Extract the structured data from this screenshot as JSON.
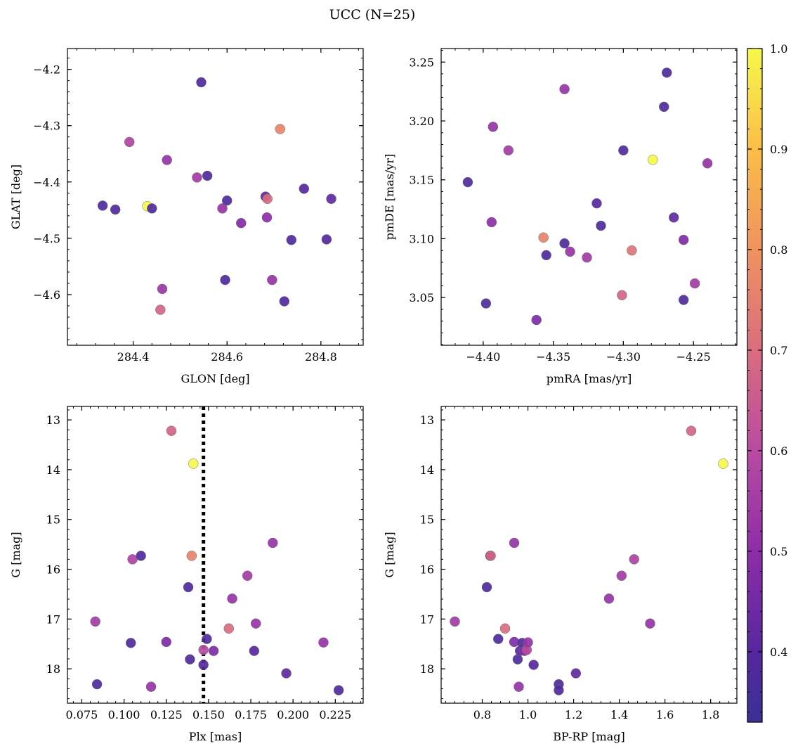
{
  "figure": {
    "title": "UCC (N=25)"
  },
  "colorbar": {
    "min": 0.33,
    "max": 1.0,
    "ticks": [
      "0.4",
      "0.5",
      "0.6",
      "0.7",
      "0.8",
      "0.9",
      "1.0"
    ],
    "tick_values": [
      0.4,
      0.5,
      0.6,
      0.7,
      0.8,
      0.9,
      1.0
    ],
    "colormap": "plasma"
  },
  "chart_data": [
    {
      "type": "scatter",
      "xlabel": "GLON [deg]",
      "ylabel": "GLAT [deg]",
      "xlim": [
        284.26,
        284.89
      ],
      "ylim": [
        -4.69,
        -4.163
      ],
      "y_inverted": false,
      "xticks": [
        284.4,
        284.6,
        284.8
      ],
      "xtick_labels": [
        "284.4",
        "284.6",
        "284.8"
      ],
      "yticks": [
        -4.2,
        -4.3,
        -4.4,
        -4.5,
        -4.6
      ],
      "ytick_labels": [
        "−4.2",
        "−4.3",
        "−4.4",
        "−4.5",
        "−4.6"
      ],
      "points": [
        {
          "x": 284.335,
          "y": -4.442,
          "c": 0.38
        },
        {
          "x": 284.362,
          "y": -4.449,
          "c": 0.38
        },
        {
          "x": 284.392,
          "y": -4.329,
          "c": 0.58
        },
        {
          "x": 284.43,
          "y": -4.443,
          "c": 1.0
        },
        {
          "x": 284.44,
          "y": -4.447,
          "c": 0.38
        },
        {
          "x": 284.462,
          "y": -4.59,
          "c": 0.53
        },
        {
          "x": 284.472,
          "y": -4.361,
          "c": 0.52
        },
        {
          "x": 284.458,
          "y": -4.627,
          "c": 0.68
        },
        {
          "x": 284.536,
          "y": -4.392,
          "c": 0.55
        },
        {
          "x": 284.545,
          "y": -4.223,
          "c": 0.38
        },
        {
          "x": 284.558,
          "y": -4.389,
          "c": 0.38
        },
        {
          "x": 284.59,
          "y": -4.447,
          "c": 0.52
        },
        {
          "x": 284.596,
          "y": -4.574,
          "c": 0.38
        },
        {
          "x": 284.6,
          "y": -4.433,
          "c": 0.38
        },
        {
          "x": 284.63,
          "y": -4.473,
          "c": 0.48
        },
        {
          "x": 284.682,
          "y": -4.426,
          "c": 0.4
        },
        {
          "x": 284.685,
          "y": -4.463,
          "c": 0.5
        },
        {
          "x": 284.686,
          "y": -4.43,
          "c": 0.7
        },
        {
          "x": 284.696,
          "y": -4.574,
          "c": 0.52
        },
        {
          "x": 284.713,
          "y": -4.306,
          "c": 0.76
        },
        {
          "x": 284.722,
          "y": -4.612,
          "c": 0.38
        },
        {
          "x": 284.737,
          "y": -4.503,
          "c": 0.38
        },
        {
          "x": 284.764,
          "y": -4.412,
          "c": 0.4
        },
        {
          "x": 284.812,
          "y": -4.502,
          "c": 0.4
        },
        {
          "x": 284.822,
          "y": -4.43,
          "c": 0.42
        }
      ]
    },
    {
      "type": "scatter",
      "xlabel": "pmRA [mas/yr]",
      "ylabel": "pmDE [mas/yr]",
      "xlim": [
        -4.43,
        -4.219
      ],
      "ylim": [
        3.0095,
        3.2615
      ],
      "y_inverted": false,
      "xticks": [
        -4.4,
        -4.35,
        -4.3,
        -4.25
      ],
      "xtick_labels": [
        "−4.40",
        "−4.35",
        "−4.30",
        "−4.25"
      ],
      "yticks": [
        3.05,
        3.1,
        3.15,
        3.2,
        3.25
      ],
      "ytick_labels": [
        "3.05",
        "3.10",
        "3.15",
        "3.20",
        "3.25"
      ],
      "points": [
        {
          "x": -4.411,
          "y": 3.148,
          "c": 0.38
        },
        {
          "x": -4.398,
          "y": 3.045,
          "c": 0.38
        },
        {
          "x": -4.393,
          "y": 3.195,
          "c": 0.52
        },
        {
          "x": -4.394,
          "y": 3.114,
          "c": 0.5
        },
        {
          "x": -4.382,
          "y": 3.175,
          "c": 0.55
        },
        {
          "x": -4.362,
          "y": 3.031,
          "c": 0.47
        },
        {
          "x": -4.357,
          "y": 3.101,
          "c": 0.76
        },
        {
          "x": -4.355,
          "y": 3.086,
          "c": 0.38
        },
        {
          "x": -4.342,
          "y": 3.227,
          "c": 0.52
        },
        {
          "x": -4.342,
          "y": 3.096,
          "c": 0.38
        },
        {
          "x": -4.338,
          "y": 3.089,
          "c": 0.52
        },
        {
          "x": -4.326,
          "y": 3.084,
          "c": 0.55
        },
        {
          "x": -4.319,
          "y": 3.13,
          "c": 0.4
        },
        {
          "x": -4.316,
          "y": 3.111,
          "c": 0.38
        },
        {
          "x": -4.3,
          "y": 3.175,
          "c": 0.38
        },
        {
          "x": -4.301,
          "y": 3.052,
          "c": 0.68
        },
        {
          "x": -4.294,
          "y": 3.09,
          "c": 0.72
        },
        {
          "x": -4.279,
          "y": 3.167,
          "c": 1.0
        },
        {
          "x": -4.271,
          "y": 3.212,
          "c": 0.38
        },
        {
          "x": -4.269,
          "y": 3.241,
          "c": 0.38
        },
        {
          "x": -4.264,
          "y": 3.118,
          "c": 0.42
        },
        {
          "x": -4.257,
          "y": 3.099,
          "c": 0.47
        },
        {
          "x": -4.257,
          "y": 3.048,
          "c": 0.38
        },
        {
          "x": -4.249,
          "y": 3.062,
          "c": 0.55
        },
        {
          "x": -4.24,
          "y": 3.164,
          "c": 0.52
        }
      ]
    },
    {
      "type": "scatter",
      "xlabel": "Plx [mas]",
      "ylabel": "G [mag]",
      "xlim": [
        0.0665,
        0.2415
      ],
      "ylim": [
        12.73,
        18.69
      ],
      "y_inverted": true,
      "xticks": [
        0.075,
        0.1,
        0.125,
        0.15,
        0.175,
        0.2,
        0.225
      ],
      "xtick_labels": [
        "0.075",
        "0.100",
        "0.125",
        "0.150",
        "0.175",
        "0.200",
        "0.225"
      ],
      "yticks": [
        13,
        14,
        15,
        16,
        17,
        18
      ],
      "ytick_labels": [
        "13",
        "14",
        "15",
        "16",
        "17",
        "18"
      ],
      "vline": {
        "x": 0.147,
        "style": "dotted"
      },
      "points": [
        {
          "x": 0.083,
          "y": 17.05,
          "c": 0.55
        },
        {
          "x": 0.084,
          "y": 18.31,
          "c": 0.38
        },
        {
          "x": 0.104,
          "y": 17.48,
          "c": 0.38
        },
        {
          "x": 0.105,
          "y": 15.8,
          "c": 0.57
        },
        {
          "x": 0.11,
          "y": 15.73,
          "c": 0.38
        },
        {
          "x": 0.116,
          "y": 18.36,
          "c": 0.52
        },
        {
          "x": 0.125,
          "y": 17.46,
          "c": 0.47
        },
        {
          "x": 0.128,
          "y": 13.22,
          "c": 0.68
        },
        {
          "x": 0.138,
          "y": 16.36,
          "c": 0.38
        },
        {
          "x": 0.139,
          "y": 17.81,
          "c": 0.38
        },
        {
          "x": 0.14,
          "y": 15.73,
          "c": 0.76
        },
        {
          "x": 0.141,
          "y": 13.88,
          "c": 1.0
        },
        {
          "x": 0.147,
          "y": 17.62,
          "c": 0.6
        },
        {
          "x": 0.147,
          "y": 17.92,
          "c": 0.4
        },
        {
          "x": 0.149,
          "y": 17.4,
          "c": 0.38
        },
        {
          "x": 0.153,
          "y": 17.64,
          "c": 0.47
        },
        {
          "x": 0.162,
          "y": 17.19,
          "c": 0.7
        },
        {
          "x": 0.164,
          "y": 16.59,
          "c": 0.52
        },
        {
          "x": 0.173,
          "y": 16.13,
          "c": 0.55
        },
        {
          "x": 0.177,
          "y": 17.64,
          "c": 0.4
        },
        {
          "x": 0.178,
          "y": 17.09,
          "c": 0.52
        },
        {
          "x": 0.188,
          "y": 15.47,
          "c": 0.52
        },
        {
          "x": 0.196,
          "y": 18.09,
          "c": 0.42
        },
        {
          "x": 0.218,
          "y": 17.47,
          "c": 0.52
        },
        {
          "x": 0.227,
          "y": 18.43,
          "c": 0.38
        }
      ]
    },
    {
      "type": "scatter",
      "xlabel": "BP-RP [mag]",
      "ylabel": "G [mag]",
      "xlim": [
        0.62,
        1.915
      ],
      "ylim": [
        12.73,
        18.69
      ],
      "y_inverted": true,
      "xticks": [
        0.8,
        1.0,
        1.2,
        1.4,
        1.6,
        1.8
      ],
      "xtick_labels": [
        "0.8",
        "1.0",
        "1.2",
        "1.4",
        "1.6",
        "1.8"
      ],
      "yticks": [
        13,
        14,
        15,
        16,
        17,
        18
      ],
      "ytick_labels": [
        "13",
        "14",
        "15",
        "16",
        "17",
        "18"
      ],
      "points": [
        {
          "x": 0.68,
          "y": 17.05,
          "c": 0.55
        },
        {
          "x": 0.82,
          "y": 16.36,
          "c": 0.38
        },
        {
          "x": 0.835,
          "y": 15.73,
          "c": 0.38
        },
        {
          "x": 0.837,
          "y": 15.73,
          "c": 0.68
        },
        {
          "x": 0.87,
          "y": 17.4,
          "c": 0.38
        },
        {
          "x": 0.9,
          "y": 17.19,
          "c": 0.7
        },
        {
          "x": 0.94,
          "y": 15.47,
          "c": 0.52
        },
        {
          "x": 0.94,
          "y": 17.46,
          "c": 0.47
        },
        {
          "x": 0.955,
          "y": 17.81,
          "c": 0.38
        },
        {
          "x": 0.96,
          "y": 18.36,
          "c": 0.52
        },
        {
          "x": 0.965,
          "y": 17.64,
          "c": 0.4
        },
        {
          "x": 0.975,
          "y": 17.48,
          "c": 0.38
        },
        {
          "x": 0.985,
          "y": 17.64,
          "c": 0.47
        },
        {
          "x": 0.995,
          "y": 17.62,
          "c": 0.6
        },
        {
          "x": 1.0,
          "y": 17.47,
          "c": 0.52
        },
        {
          "x": 1.025,
          "y": 17.92,
          "c": 0.4
        },
        {
          "x": 1.135,
          "y": 18.31,
          "c": 0.38
        },
        {
          "x": 1.135,
          "y": 18.43,
          "c": 0.38
        },
        {
          "x": 1.21,
          "y": 18.09,
          "c": 0.42
        },
        {
          "x": 1.355,
          "y": 16.59,
          "c": 0.52
        },
        {
          "x": 1.41,
          "y": 16.13,
          "c": 0.55
        },
        {
          "x": 1.465,
          "y": 15.8,
          "c": 0.57
        },
        {
          "x": 1.535,
          "y": 17.09,
          "c": 0.52
        },
        {
          "x": 1.715,
          "y": 13.22,
          "c": 0.68
        },
        {
          "x": 1.855,
          "y": 13.88,
          "c": 1.0
        }
      ]
    }
  ]
}
